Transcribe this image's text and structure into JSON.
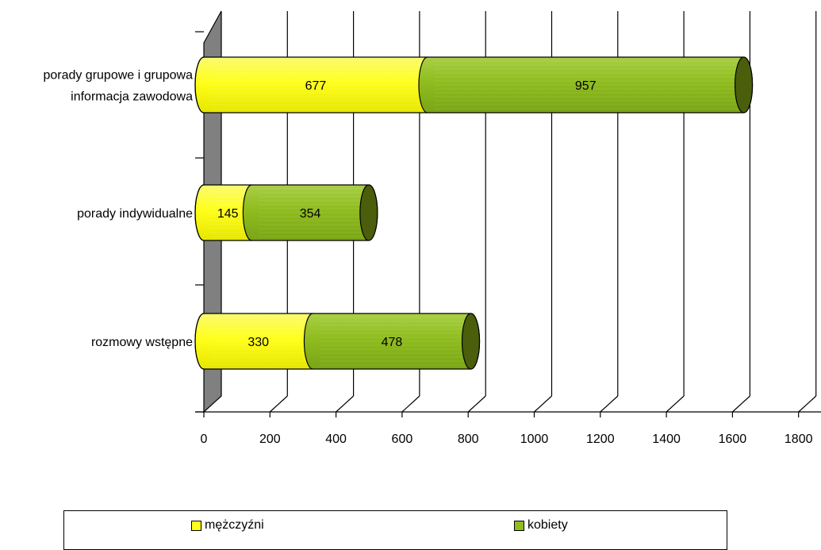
{
  "chart_data": {
    "type": "bar",
    "orientation": "horizontal",
    "stacked": true,
    "style_3d": "cylinder",
    "categories": [
      "porady grupowe i grupowa informacja zawodowa",
      "porady indywidualne",
      "rozmowy wstępne"
    ],
    "category_label_lines": [
      [
        "porady grupowe i grupowa",
        "informacja zawodowa"
      ],
      [
        "porady indywidualne"
      ],
      [
        "rozmowy wstępne"
      ]
    ],
    "series": [
      {
        "name": "mężczyźni",
        "values": [
          677,
          145,
          330
        ],
        "color": "#ffff1a"
      },
      {
        "name": "kobiety",
        "values": [
          957,
          354,
          478
        ],
        "color": "#8fbc1e"
      }
    ],
    "x_ticks": [
      0,
      200,
      400,
      600,
      800,
      1000,
      1200,
      1400,
      1600,
      1800
    ],
    "xlim": [
      0,
      1800
    ],
    "grid": true,
    "legend_position": "bottom",
    "data_labels": true,
    "title": "",
    "xlabel": "",
    "ylabel": ""
  },
  "colors": {
    "male": "#ffff1a",
    "female": "#8fbc1e",
    "female_dark": "#4a5e0c",
    "wall": "#808080"
  }
}
